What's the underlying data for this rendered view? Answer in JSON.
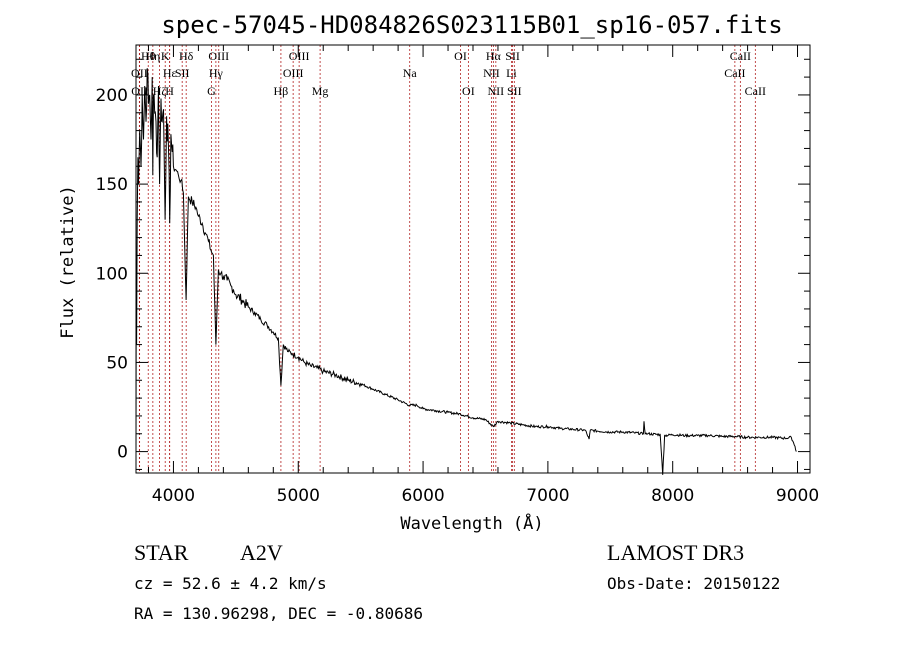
{
  "chart_data": {
    "type": "line",
    "title": "spec-57045-HD084826S023115B01_sp16-057.fits",
    "xlabel": "Wavelength (Å)",
    "ylabel": "Flux (relative)",
    "xlim": [
      3700,
      9100
    ],
    "ylim": [
      -12,
      228
    ],
    "xticks": [
      4000,
      5000,
      6000,
      7000,
      8000,
      9000
    ],
    "yticks": [
      0,
      50,
      100,
      150,
      200
    ],
    "series": [
      {
        "name": "flux",
        "points": [
          [
            3700,
            0
          ],
          [
            3702,
            75
          ],
          [
            3705,
            60
          ],
          [
            3710,
            130
          ],
          [
            3715,
            165
          ],
          [
            3720,
            150
          ],
          [
            3730,
            180
          ],
          [
            3740,
            160
          ],
          [
            3750,
            200
          ],
          [
            3760,
            175
          ],
          [
            3770,
            205
          ],
          [
            3780,
            185
          ],
          [
            3790,
            215
          ],
          [
            3800,
            195
          ],
          [
            3810,
            200
          ],
          [
            3820,
            175
          ],
          [
            3830,
            210
          ],
          [
            3835,
            155
          ],
          [
            3840,
            200
          ],
          [
            3850,
            190
          ],
          [
            3860,
            185
          ],
          [
            3870,
            165
          ],
          [
            3880,
            205
          ],
          [
            3889,
            150
          ],
          [
            3900,
            198
          ],
          [
            3910,
            185
          ],
          [
            3920,
            192
          ],
          [
            3933,
            130
          ],
          [
            3945,
            188
          ],
          [
            3960,
            170
          ],
          [
            3970,
            128
          ],
          [
            3980,
            178
          ],
          [
            3990,
            168
          ],
          [
            4000,
            160
          ],
          [
            4020,
            158
          ],
          [
            4040,
            155
          ],
          [
            4060,
            152
          ],
          [
            4080,
            145
          ],
          [
            4101,
            85
          ],
          [
            4120,
            143
          ],
          [
            4150,
            140
          ],
          [
            4180,
            137
          ],
          [
            4200,
            132
          ],
          [
            4230,
            128
          ],
          [
            4260,
            122
          ],
          [
            4280,
            118
          ],
          [
            4300,
            113
          ],
          [
            4320,
            110
          ],
          [
            4340,
            60
          ],
          [
            4360,
            102
          ],
          [
            4380,
            100
          ],
          [
            4400,
            98
          ],
          [
            4430,
            96
          ],
          [
            4460,
            93
          ],
          [
            4480,
            91
          ],
          [
            4500,
            88
          ],
          [
            4550,
            85
          ],
          [
            4600,
            81
          ],
          [
            4650,
            78
          ],
          [
            4700,
            74
          ],
          [
            4750,
            71
          ],
          [
            4800,
            67
          ],
          [
            4840,
            64
          ],
          [
            4861,
            37
          ],
          [
            4880,
            60
          ],
          [
            4920,
            56
          ],
          [
            4950,
            55
          ],
          [
            5000,
            53
          ],
          [
            5050,
            50
          ],
          [
            5100,
            48
          ],
          [
            5150,
            47
          ],
          [
            5200,
            45
          ],
          [
            5300,
            43
          ],
          [
            5400,
            40
          ],
          [
            5500,
            38
          ],
          [
            5600,
            35
          ],
          [
            5700,
            32
          ],
          [
            5800,
            29
          ],
          [
            5890,
            26
          ],
          [
            5950,
            26
          ],
          [
            6000,
            24
          ],
          [
            6100,
            23
          ],
          [
            6200,
            22
          ],
          [
            6300,
            21
          ],
          [
            6400,
            19
          ],
          [
            6500,
            18
          ],
          [
            6563,
            14
          ],
          [
            6600,
            17
          ],
          [
            6700,
            16
          ],
          [
            6800,
            15
          ],
          [
            6900,
            14
          ],
          [
            7000,
            14
          ],
          [
            7100,
            13
          ],
          [
            7200,
            12.5
          ],
          [
            7300,
            12
          ],
          [
            7330,
            7
          ],
          [
            7340,
            12
          ],
          [
            7400,
            11.5
          ],
          [
            7500,
            11
          ],
          [
            7600,
            11
          ],
          [
            7700,
            10.5
          ],
          [
            7765,
            10
          ],
          [
            7770,
            17
          ],
          [
            7780,
            10
          ],
          [
            7800,
            10
          ],
          [
            7900,
            9.5
          ],
          [
            7920,
            -13
          ],
          [
            7935,
            9
          ],
          [
            8000,
            9.5
          ],
          [
            8100,
            9
          ],
          [
            8200,
            9
          ],
          [
            8300,
            9
          ],
          [
            8400,
            8.5
          ],
          [
            8500,
            8.5
          ],
          [
            8600,
            8
          ],
          [
            8700,
            8
          ],
          [
            8800,
            8
          ],
          [
            8900,
            7.5
          ],
          [
            8950,
            8
          ],
          [
            8980,
            3
          ],
          [
            8990,
            0
          ]
        ]
      }
    ],
    "lines_upper": [
      {
        "label": "Hθ",
        "x": 3798,
        "row": 1
      },
      {
        "label": "OII",
        "x": 3727,
        "row": 2
      },
      {
        "label": "OII",
        "x": 3729,
        "row": 3
      },
      {
        "label": "Hη",
        "x": 3835,
        "row": 1
      },
      {
        "label": "Hζ",
        "x": 3889,
        "row": 3
      },
      {
        "label": "K",
        "x": 3934,
        "row": 1
      },
      {
        "label": "Hε",
        "x": 3970,
        "row": 2
      },
      {
        "label": "H",
        "x": 3969,
        "row": 3
      },
      {
        "label": "SII",
        "x": 4070,
        "row": 2
      },
      {
        "label": "Hδ",
        "x": 4102,
        "row": 1
      },
      {
        "label": "OIII",
        "x": 4363,
        "row": 1
      },
      {
        "label": "Hγ",
        "x": 4340,
        "row": 2
      },
      {
        "label": "G",
        "x": 4305,
        "row": 3
      },
      {
        "label": "Hβ",
        "x": 4861,
        "row": 3
      },
      {
        "label": "OIII",
        "x": 5007,
        "row": 1
      },
      {
        "label": "OIII",
        "x": 4959,
        "row": 2
      },
      {
        "label": "Mg",
        "x": 5175,
        "row": 3
      },
      {
        "label": "Na",
        "x": 5893,
        "row": 2
      },
      {
        "label": "OI",
        "x": 6300,
        "row": 1
      },
      {
        "label": "OI",
        "x": 6363,
        "row": 3
      },
      {
        "label": "Hα",
        "x": 6563,
        "row": 1
      },
      {
        "label": "NII",
        "x": 6548,
        "row": 2
      },
      {
        "label": "NII",
        "x": 6583,
        "row": 3
      },
      {
        "label": "SII",
        "x": 6717,
        "row": 1
      },
      {
        "label": "Li",
        "x": 6708,
        "row": 2
      },
      {
        "label": "SII",
        "x": 6731,
        "row": 3
      },
      {
        "label": "CaII",
        "x": 8542,
        "row": 1
      },
      {
        "label": "CaII",
        "x": 8498,
        "row": 2
      },
      {
        "label": "CaII",
        "x": 8662,
        "row": 3
      }
    ]
  },
  "footer": {
    "class": "STAR",
    "subclass": "A2V",
    "survey": "LAMOST DR3",
    "cz": "cz = 52.6 ± 4.2 km/s",
    "obs_date": "Obs-Date: 20150122",
    "coords": "RA = 130.96298, DEC =  -0.80686"
  }
}
